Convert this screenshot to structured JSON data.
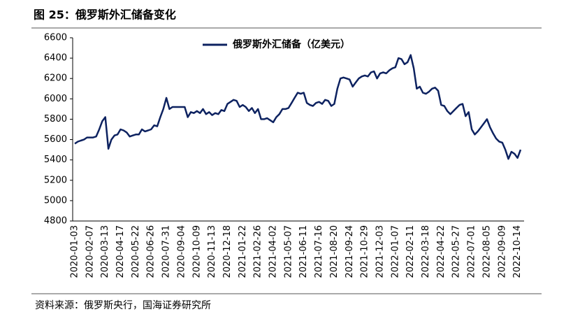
{
  "chart_data": {
    "type": "line",
    "title": "图 25：俄罗斯外汇储备变化",
    "source": "资料来源：俄罗斯央行，国海证券研究所",
    "categories": [
      "2020-01-03",
      null,
      null,
      null,
      null,
      "2020-02-07",
      null,
      null,
      null,
      null,
      "2020-03-13",
      null,
      null,
      null,
      null,
      "2020-04-17",
      null,
      null,
      null,
      null,
      "2020-05-22",
      null,
      null,
      null,
      null,
      "2020-06-26",
      null,
      null,
      null,
      null,
      "2020-07-31",
      null,
      null,
      null,
      null,
      "2020-09-04",
      null,
      null,
      null,
      null,
      "2020-10-09",
      null,
      null,
      null,
      null,
      "2020-11-13",
      null,
      null,
      null,
      null,
      "2020-12-18",
      null,
      null,
      null,
      null,
      "2021-01-22",
      null,
      null,
      null,
      null,
      "2021-02-26",
      null,
      null,
      null,
      null,
      "2021-04-02",
      null,
      null,
      null,
      null,
      "2021-05-07",
      null,
      null,
      null,
      null,
      "2021-06-11",
      null,
      null,
      null,
      null,
      "2021-07-16",
      null,
      null,
      null,
      null,
      "2021-08-20",
      null,
      null,
      null,
      null,
      "2021-09-24",
      null,
      null,
      null,
      null,
      "2021-10-29",
      null,
      null,
      null,
      null,
      "2021-12-03",
      null,
      null,
      null,
      null,
      "2022-01-07",
      null,
      null,
      null,
      null,
      "2022-02-11",
      null,
      null,
      null,
      null,
      "2022-03-18",
      null,
      null,
      null,
      null,
      "2022-04-22",
      null,
      null,
      null,
      null,
      "2022-05-27",
      null,
      null,
      null,
      null,
      "2022-07-01",
      null,
      null,
      null,
      null,
      "2022-08-05",
      null,
      null,
      null,
      null,
      "2022-09-09",
      null,
      null,
      null,
      null,
      "2022-10-14",
      null
    ],
    "series": [
      {
        "name": "俄罗斯外汇储备（亿美元）",
        "color": "#0d2260",
        "values": [
          5560,
          5580,
          5590,
          5600,
          5620,
          5620,
          5620,
          5630,
          5700,
          5780,
          5820,
          5510,
          5600,
          5640,
          5650,
          5700,
          5690,
          5670,
          5630,
          5640,
          5650,
          5650,
          5700,
          5680,
          5690,
          5700,
          5740,
          5730,
          5820,
          5900,
          6010,
          5900,
          5920,
          5920,
          5920,
          5920,
          5920,
          5820,
          5870,
          5860,
          5880,
          5860,
          5900,
          5850,
          5870,
          5840,
          5860,
          5850,
          5890,
          5880,
          5950,
          5970,
          5990,
          5980,
          5920,
          5940,
          5920,
          5880,
          5910,
          5860,
          5900,
          5800,
          5800,
          5810,
          5790,
          5770,
          5820,
          5850,
          5900,
          5900,
          5910,
          5960,
          6010,
          6060,
          6050,
          6060,
          5960,
          5940,
          5930,
          5960,
          5970,
          5950,
          5990,
          5980,
          5930,
          5950,
          6100,
          6200,
          6210,
          6200,
          6190,
          6120,
          6160,
          6200,
          6220,
          6230,
          6220,
          6260,
          6270,
          6200,
          6250,
          6260,
          6250,
          6280,
          6300,
          6310,
          6400,
          6390,
          6340,
          6360,
          6430,
          6300,
          6100,
          6120,
          6060,
          6050,
          6070,
          6100,
          6110,
          6080,
          5940,
          5930,
          5880,
          5850,
          5880,
          5910,
          5940,
          5950,
          5830,
          5870,
          5700,
          5650,
          5680,
          5720,
          5760,
          5800,
          5720,
          5660,
          5610,
          5580,
          5570,
          5500,
          5410,
          5480,
          5460,
          5420,
          5500
        ]
      }
    ],
    "ylim": [
      4800,
      6600
    ],
    "yticks": [
      4800,
      5000,
      5200,
      5400,
      5600,
      5800,
      6000,
      6200,
      6400,
      6600
    ],
    "grid": false,
    "legend": "top"
  }
}
